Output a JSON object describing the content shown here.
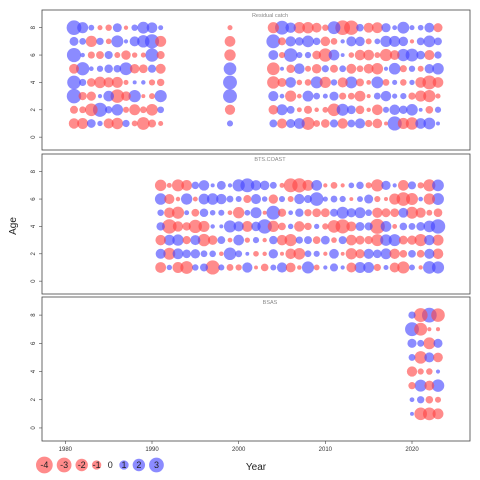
{
  "chart_data": {
    "type": "scatter",
    "subtype": "bubble-residuals",
    "xlabel": "Year",
    "ylabel": "Age",
    "xlim": [
      1978,
      2026
    ],
    "ylim": [
      -0.5,
      9
    ],
    "x_ticks": [
      1980,
      1990,
      2000,
      2010,
      2020
    ],
    "y_ticks": [
      0,
      2,
      4,
      6,
      8
    ],
    "colors": {
      "positive": "#4444ff",
      "negative": "#ff4444"
    },
    "legend": {
      "placement": "bottom-left",
      "entries": [
        {
          "value": -4,
          "label": "-4"
        },
        {
          "value": -3,
          "label": "-3"
        },
        {
          "value": -2,
          "label": "-2"
        },
        {
          "value": -1,
          "label": "-1"
        },
        {
          "value": 0,
          "label": "0"
        },
        {
          "value": 1,
          "label": "1"
        },
        {
          "value": 2,
          "label": "2"
        },
        {
          "value": 3,
          "label": "3"
        }
      ]
    },
    "panels": [
      {
        "title": "Residual catch",
        "ages": [
          1,
          2,
          3,
          4,
          5,
          6,
          7,
          8
        ],
        "year_ranges": [
          [
            1981,
            1991
          ],
          [
            1999,
            1999
          ],
          [
            2004,
            2023
          ]
        ],
        "highlights": [
          {
            "year": 1981,
            "age": 8,
            "value": 2.3
          },
          {
            "year": 1981,
            "age": 6,
            "value": 2.1
          },
          {
            "year": 1981,
            "age": 4,
            "value": 1.9
          },
          {
            "year": 1981,
            "age": 3,
            "value": 2.2
          },
          {
            "year": 1982,
            "age": 5,
            "value": 1.8
          },
          {
            "year": 1984,
            "age": 2,
            "value": 2.1
          },
          {
            "year": 1983,
            "age": 2,
            "value": -1.6
          },
          {
            "year": 1986,
            "age": 3,
            "value": -1.9
          },
          {
            "year": 1988,
            "age": 3,
            "value": 1.5
          },
          {
            "year": 1990,
            "age": 7,
            "value": 2.1
          },
          {
            "year": 1990,
            "age": 6,
            "value": 1.8
          },
          {
            "year": 1999,
            "age": 3,
            "value": 2.0
          },
          {
            "year": 1999,
            "age": 4,
            "value": 2.0
          },
          {
            "year": 1999,
            "age": 5,
            "value": 1.6
          },
          {
            "year": 2004,
            "age": 7,
            "value": 2.0
          },
          {
            "year": 2005,
            "age": 8,
            "value": 2.0
          },
          {
            "year": 2006,
            "age": 6,
            "value": 1.9
          },
          {
            "year": 2008,
            "age": 1,
            "value": -1.7
          },
          {
            "year": 2010,
            "age": 6,
            "value": -1.8
          },
          {
            "year": 2012,
            "age": 8,
            "value": -2.3
          },
          {
            "year": 2013,
            "age": 8,
            "value": -2.2
          },
          {
            "year": 2018,
            "age": 1,
            "value": 2.1
          },
          {
            "year": 2022,
            "age": 4,
            "value": -2.0
          }
        ]
      },
      {
        "title": "BTS.COAST",
        "ages": [
          1,
          2,
          3,
          4,
          5,
          6,
          7
        ],
        "year_ranges": [
          [
            1991,
            2023
          ]
        ],
        "highlights": [
          {
            "year": 1992,
            "age": 4,
            "value": -2.2
          },
          {
            "year": 1995,
            "age": 4,
            "value": -1.8
          },
          {
            "year": 1997,
            "age": 1,
            "value": -2.1
          },
          {
            "year": 2001,
            "age": 7,
            "value": 2.0
          },
          {
            "year": 2003,
            "age": 4,
            "value": 2.2
          },
          {
            "year": 2004,
            "age": 5,
            "value": 2.0
          },
          {
            "year": 2006,
            "age": 7,
            "value": -2.0
          },
          {
            "year": 2007,
            "age": 7,
            "value": -2.1
          },
          {
            "year": 2009,
            "age": 6,
            "value": 1.9
          },
          {
            "year": 2012,
            "age": 4,
            "value": -2.1
          },
          {
            "year": 2016,
            "age": 4,
            "value": -2.4
          },
          {
            "year": 2019,
            "age": 6,
            "value": -1.9
          },
          {
            "year": 2023,
            "age": 4,
            "value": 2.2
          }
        ]
      },
      {
        "title": "BSAS",
        "ages": [
          1,
          2,
          3,
          4,
          5,
          6,
          7,
          8
        ],
        "year_ranges": [
          [
            2020,
            2023
          ]
        ],
        "highlights": [
          {
            "year": 2020,
            "age": 7,
            "value": 2.0
          },
          {
            "year": 2021,
            "age": 8,
            "value": -2.0
          },
          {
            "year": 2022,
            "age": 8,
            "value": 2.3
          },
          {
            "year": 2023,
            "age": 8,
            "value": -1.9
          },
          {
            "year": 2021,
            "age": 7,
            "value": -1.7
          },
          {
            "year": 2021,
            "age": 1,
            "value": -1.6
          },
          {
            "year": 2022,
            "age": 6,
            "value": -1.4
          }
        ]
      }
    ]
  }
}
